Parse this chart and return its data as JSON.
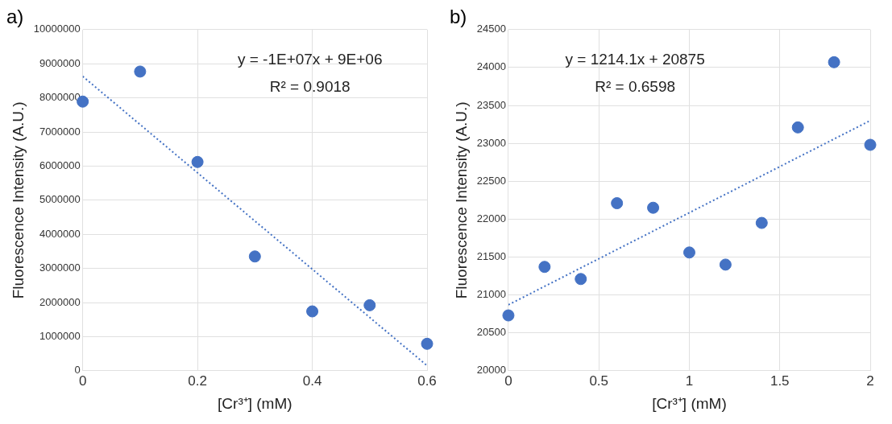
{
  "chart_data": [
    {
      "type": "scatter",
      "title": "a)",
      "xlabel": "[Cr³⁺] (mM)",
      "ylabel": "Fluorescence Intensity (A.U.)",
      "xlim": [
        0,
        0.6
      ],
      "xticks": [
        0,
        0.2,
        0.4,
        0.6
      ],
      "ylim": [
        0,
        10000000
      ],
      "yticks": [
        0,
        1000000,
        2000000,
        3000000,
        4000000,
        5000000,
        6000000,
        7000000,
        8000000,
        9000000,
        10000000
      ],
      "grid": true,
      "annotations": [
        "y = -1E+07x + 9E+06",
        "R² = 0.9018"
      ],
      "series": [
        {
          "color": "#4472c4",
          "marker": "circle",
          "x": [
            0,
            0.1,
            0.2,
            0.3,
            0.4,
            0.5,
            0.6
          ],
          "values": [
            7890000,
            8770000,
            6120000,
            3350000,
            1740000,
            1920000,
            790000
          ]
        },
        {
          "type": "line",
          "color": "#4472c4",
          "marker": "none",
          "line_style": "dotted",
          "x": [
            0,
            0.6
          ],
          "values": [
            8630000,
            150000
          ]
        }
      ]
    },
    {
      "type": "scatter",
      "title": "b)",
      "xlabel": "[Cr³⁺] (mM)",
      "ylabel": "Fluorescence Intensity (A.U.)",
      "xlim": [
        0,
        2
      ],
      "xticks": [
        0,
        0.5,
        1,
        1.5,
        2
      ],
      "ylim": [
        20000,
        24500
      ],
      "yticks": [
        20000,
        20500,
        21000,
        21500,
        22000,
        22500,
        23000,
        23500,
        24000,
        24500
      ],
      "grid": true,
      "annotations": [
        "y = 1214.1x + 20875",
        "R² = 0.6598"
      ],
      "series": [
        {
          "color": "#4472c4",
          "marker": "circle",
          "x": [
            0,
            0.2,
            0.4,
            0.6,
            0.8,
            1,
            1.2,
            1.4,
            1.6,
            1.8,
            2
          ],
          "values": [
            20730,
            21370,
            21210,
            22210,
            22150,
            21560,
            21400,
            21950,
            23210,
            24070,
            22980
          ]
        },
        {
          "type": "line",
          "color": "#4472c4",
          "marker": "none",
          "line_style": "dotted",
          "x": [
            0,
            2
          ],
          "values": [
            20870,
            23300
          ]
        }
      ]
    }
  ]
}
